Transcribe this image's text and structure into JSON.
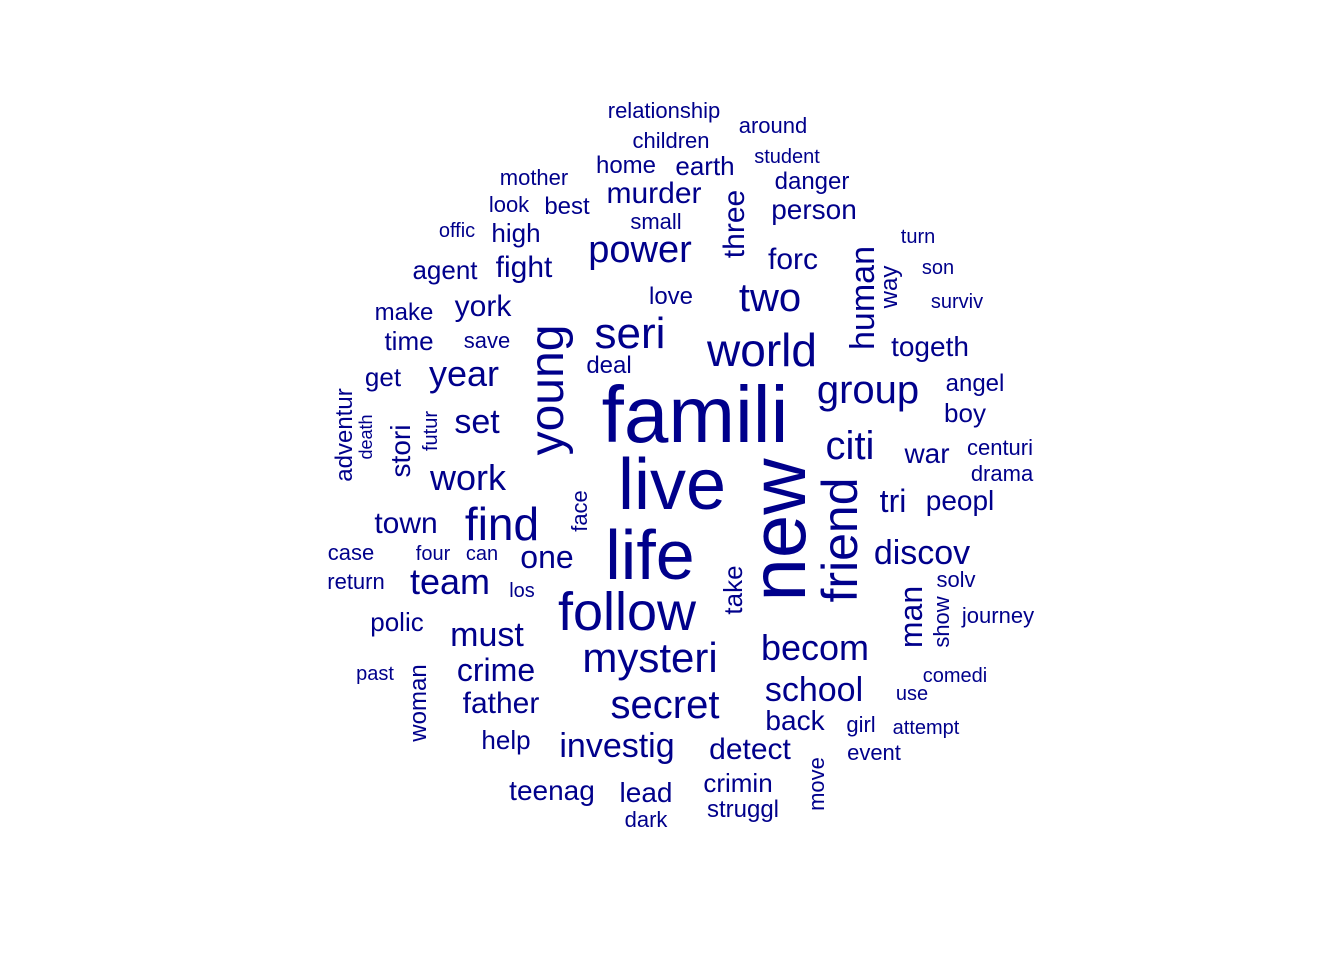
{
  "chart_data": {
    "type": "wordcloud",
    "color": "#00008B",
    "words": [
      {
        "text": "famili",
        "freq": 100
      },
      {
        "text": "new",
        "freq": 96
      },
      {
        "text": "live",
        "freq": 88
      },
      {
        "text": "life",
        "freq": 84
      },
      {
        "text": "follow",
        "freq": 64
      },
      {
        "text": "friend",
        "freq": 62
      },
      {
        "text": "young",
        "freq": 60
      },
      {
        "text": "world",
        "freq": 56
      },
      {
        "text": "find",
        "freq": 52
      },
      {
        "text": "mysteri",
        "freq": 48
      },
      {
        "text": "seri",
        "freq": 48
      },
      {
        "text": "citi",
        "freq": 44
      },
      {
        "text": "group",
        "freq": 44
      },
      {
        "text": "secret",
        "freq": 44
      },
      {
        "text": "two",
        "freq": 44
      },
      {
        "text": "power",
        "freq": 42
      },
      {
        "text": "becom",
        "freq": 40
      },
      {
        "text": "year",
        "freq": 40
      },
      {
        "text": "investig",
        "freq": 38
      },
      {
        "text": "school",
        "freq": 38
      },
      {
        "text": "work",
        "freq": 38
      },
      {
        "text": "team",
        "freq": 38
      },
      {
        "text": "discov",
        "freq": 36
      },
      {
        "text": "must",
        "freq": 36
      },
      {
        "text": "human",
        "freq": 36
      },
      {
        "text": "crime",
        "freq": 36
      },
      {
        "text": "set",
        "freq": 36
      },
      {
        "text": "one",
        "freq": 34
      },
      {
        "text": "man",
        "freq": 34
      },
      {
        "text": "tri",
        "freq": 34
      },
      {
        "text": "murder",
        "freq": 32
      },
      {
        "text": "detect",
        "freq": 32
      },
      {
        "text": "town",
        "freq": 32
      },
      {
        "text": "father",
        "freq": 32
      },
      {
        "text": "forc",
        "freq": 32
      },
      {
        "text": "three",
        "freq": 32
      },
      {
        "text": "york",
        "freq": 32
      },
      {
        "text": "fight",
        "freq": 32
      },
      {
        "text": "togeth",
        "freq": 30
      },
      {
        "text": "stori",
        "freq": 30
      },
      {
        "text": "war",
        "freq": 30
      },
      {
        "text": "back",
        "freq": 30
      },
      {
        "text": "person",
        "freq": 30
      },
      {
        "text": "peopl",
        "freq": 30
      },
      {
        "text": "take",
        "freq": 28
      },
      {
        "text": "teenag",
        "freq": 28
      },
      {
        "text": "lead",
        "freq": 28
      },
      {
        "text": "crimin",
        "freq": 28
      },
      {
        "text": "polic",
        "freq": 28
      },
      {
        "text": "time",
        "freq": 28
      },
      {
        "text": "earth",
        "freq": 28
      },
      {
        "text": "help",
        "freq": 28
      },
      {
        "text": "high",
        "freq": 28
      },
      {
        "text": "agent",
        "freq": 28
      },
      {
        "text": "get",
        "freq": 28
      },
      {
        "text": "home",
        "freq": 26
      },
      {
        "text": "love",
        "freq": 26
      },
      {
        "text": "boy",
        "freq": 26
      },
      {
        "text": "danger",
        "freq": 26
      },
      {
        "text": "way",
        "freq": 26
      },
      {
        "text": "adventur",
        "freq": 26
      },
      {
        "text": "best",
        "freq": 26
      },
      {
        "text": "woman",
        "freq": 26
      },
      {
        "text": "struggl",
        "freq": 26
      },
      {
        "text": "deal",
        "freq": 26
      },
      {
        "text": "make",
        "freq": 26
      },
      {
        "text": "angel",
        "freq": 25
      },
      {
        "text": "move",
        "freq": 24
      },
      {
        "text": "mother",
        "freq": 24
      },
      {
        "text": "case",
        "freq": 24
      },
      {
        "text": "show",
        "freq": 24
      },
      {
        "text": "journey",
        "freq": 24
      },
      {
        "text": "dark",
        "freq": 24
      },
      {
        "text": "save",
        "freq": 24
      },
      {
        "text": "small",
        "freq": 24
      },
      {
        "text": "relationship",
        "freq": 24
      },
      {
        "text": "children",
        "freq": 24
      },
      {
        "text": "around",
        "freq": 24
      },
      {
        "text": "event",
        "freq": 24
      },
      {
        "text": "face",
        "freq": 24
      },
      {
        "text": "look",
        "freq": 24
      },
      {
        "text": "return",
        "freq": 24
      },
      {
        "text": "solv",
        "freq": 24
      },
      {
        "text": "girl",
        "freq": 24
      },
      {
        "text": "centuri",
        "freq": 24
      },
      {
        "text": "futur",
        "freq": 22
      },
      {
        "text": "student",
        "freq": 22
      },
      {
        "text": "drama",
        "freq": 22
      },
      {
        "text": "use",
        "freq": 22
      },
      {
        "text": "attempt",
        "freq": 22
      },
      {
        "text": "comedi",
        "freq": 22
      },
      {
        "text": "turn",
        "freq": 22
      },
      {
        "text": "son",
        "freq": 22
      },
      {
        "text": "surviv",
        "freq": 22
      },
      {
        "text": "past",
        "freq": 22
      },
      {
        "text": "death",
        "freq": 22
      },
      {
        "text": "los",
        "freq": 22
      },
      {
        "text": "four",
        "freq": 22
      },
      {
        "text": "can",
        "freq": 22
      },
      {
        "text": "offic",
        "freq": 22
      }
    ]
  }
}
